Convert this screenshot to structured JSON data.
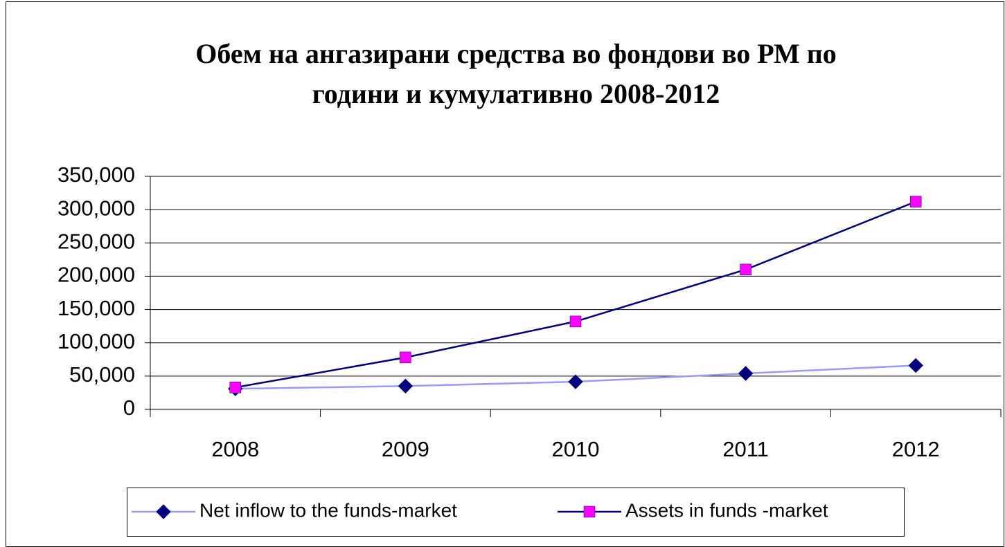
{
  "chart_data": {
    "type": "line",
    "title": [
      "Обем на ангазирани средства во фондови во РМ по",
      "години и кумулативно 2008-2012"
    ],
    "categories": [
      "2008",
      "2009",
      "2010",
      "2011",
      "2012"
    ],
    "series": [
      {
        "name": "Net inflow to the funds-market",
        "color": "#9999ff",
        "marker_color": "#000080",
        "marker": "diamond",
        "values": [
          31000,
          35000,
          41500,
          54000,
          66000
        ]
      },
      {
        "name": "Assets in funds -market",
        "color": "#000080",
        "marker_color": "#ff00ff",
        "marker": "square",
        "values": [
          33000,
          78000,
          132000,
          210000,
          312000
        ]
      }
    ],
    "ylim": [
      0,
      350000
    ],
    "yticks": [
      0,
      {
        "value": 50000,
        "label": "50,000"
      },
      {
        "value": 100000,
        "label": "100,000"
      },
      {
        "value": 150000,
        "label": "150,000"
      },
      {
        "value": 200000,
        "label": "200,000"
      },
      {
        "value": 250000,
        "label": "250,000"
      },
      {
        "value": 300000,
        "label": "300,000"
      },
      {
        "value": 350000,
        "label": "350,000"
      }
    ],
    "grid": true,
    "legend": "bottom"
  }
}
